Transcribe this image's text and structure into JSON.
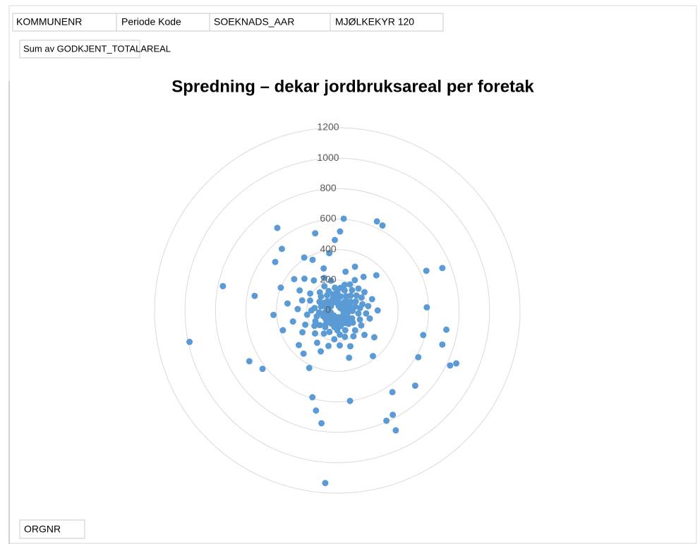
{
  "fields": {
    "filters": [
      "KOMMUNENR",
      "Periode Kode",
      "SOEKNADS_AAR",
      "MJØLKEKYR 120"
    ],
    "value_field": "Sum av GODKJENT_TOTALAREAL",
    "axis_field": "ORGNR"
  },
  "chart_data": {
    "type": "radar",
    "title": "Spredning – dekar jordbruksareal per foretak",
    "color": "#5b9bd5",
    "grid": true,
    "rlim": [
      0,
      1200
    ],
    "rticks": [
      0,
      200,
      400,
      600,
      800,
      1000,
      1200
    ],
    "categories": [
      null,
      null,
      null,
      null,
      null,
      null,
      null,
      null,
      null,
      null,
      null,
      null,
      null,
      null,
      null,
      null,
      null,
      null,
      null,
      null,
      null,
      null,
      null,
      null,
      null,
      null,
      null,
      null,
      null,
      null,
      null,
      null,
      null,
      null,
      null,
      null,
      null,
      null,
      null,
      null,
      null,
      null,
      null,
      null,
      null,
      null,
      null,
      null,
      null,
      null,
      null,
      null,
      null,
      null,
      null,
      null,
      null,
      null,
      null,
      null,
      null,
      null,
      null,
      null,
      null,
      null,
      null,
      null,
      null,
      null,
      null,
      null,
      null,
      null,
      null,
      null,
      null,
      null,
      null,
      null,
      null,
      null,
      null,
      null,
      null,
      null,
      null,
      null,
      null,
      null,
      null,
      null,
      null,
      null,
      null,
      null,
      null,
      null,
      null,
      null,
      null,
      null,
      null,
      null,
      null,
      null,
      null,
      null,
      null,
      null,
      null,
      null,
      null,
      null,
      null,
      null,
      null,
      null,
      null,
      null,
      null,
      null,
      null,
      null,
      null,
      null,
      null,
      null,
      null,
      null,
      null,
      null,
      null,
      null,
      null,
      null,
      null,
      null,
      null,
      null,
      null,
      null,
      null,
      null,
      null,
      null,
      null,
      null,
      null,
      null,
      null,
      null,
      null,
      null,
      null,
      null,
      null,
      null,
      null,
      null,
      null,
      null,
      null,
      null,
      null,
      null,
      null,
      null,
      null,
      null,
      null,
      null,
      null,
      null,
      null,
      null,
      null,
      null,
      null,
      null
    ],
    "values": [
      120,
      519,
      604,
      60,
      150,
      40,
      260,
      95,
      175,
      30,
      140,
      310,
      640,
      190,
      632,
      230,
      110,
      45,
      165,
      280,
      75,
      130,
      200,
      50,
      345,
      90,
      160,
      25,
      215,
      105,
      65,
      180,
      135,
      640,
      744,
      85,
      240,
      55,
      170,
      120,
      35,
      205,
      150,
      80,
      588,
      265,
      100,
      60,
      190,
      140,
      727,
      70,
      220,
      587,
      725,
      45,
      160,
      855,
      824,
      110,
      614,
      185,
      90,
      300,
      130,
      50,
      240,
      711,
      75,
      175,
      115,
      380,
      60,
      647,
      200,
      95,
      776,
      876,
      793,
      140,
      250,
      70,
      180,
      320,
      105,
      45,
      600,
      160,
      230,
      85,
      130,
      55,
      1136,
      190,
      748,
      110,
      672,
      240,
      593,
      70,
      150,
      290,
      95,
      420,
      65,
      175,
      250,
      40,
      135,
      360,
      120,
      80,
      210,
      50,
      340,
      150,
      623,
      95,
      180,
      270,
      667,
      60,
      160,
      230,
      100,
      380,
      45,
      140,
      300,
      992,
      85,
      200,
      120,
      420,
      70,
      170,
      260,
      55,
      150,
      330,
      551,
      768,
      110,
      240,
      80,
      190,
      400,
      65,
      130,
      280,
      100,
      210,
      50,
      350,
      517,
      140,
      90,
      300,
      165,
      544,
      75,
      250,
      670,
      120,
      410,
      60,
      180,
      370,
      140,
      230,
      85,
      290,
      527,
      110,
      200,
      55,
      380,
      150,
      95,
      463
    ]
  }
}
